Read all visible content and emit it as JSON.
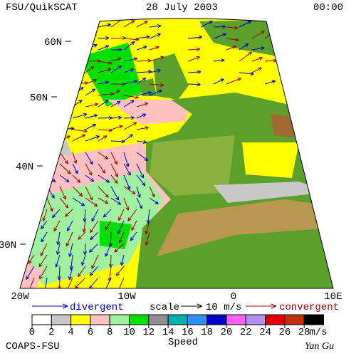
{
  "header": {
    "title": "FSU/QuikSCAT",
    "date": "28 July 2003",
    "time": "00:00"
  },
  "map": {
    "lat_labels": [
      "60N",
      "50N",
      "40N",
      "30N"
    ],
    "lon_labels": [
      "20W",
      "10W",
      "0",
      "10E"
    ]
  },
  "legend": {
    "divergent": "divergent",
    "scale": "scale",
    "scale_value": "10 m/s",
    "convergent": "convergent"
  },
  "colorbar": {
    "ticks": [
      0,
      2,
      4,
      6,
      8,
      10,
      12,
      14,
      16,
      18,
      20,
      22,
      24,
      26,
      28
    ],
    "unit": "m/s",
    "label": "Speed",
    "colors": [
      "#ffffff",
      "#c8c8c8",
      "#ffff00",
      "#ffc0c0",
      "#a0f0a0",
      "#00e000",
      "#909090",
      "#00b0b0",
      "#3090ff",
      "#0000c8",
      "#ff60ff",
      "#b090f0",
      "#e00000",
      "#c03000",
      "#000000"
    ]
  },
  "footer": {
    "credit": "COAPS-FSU",
    "author": "Yan Gu"
  }
}
